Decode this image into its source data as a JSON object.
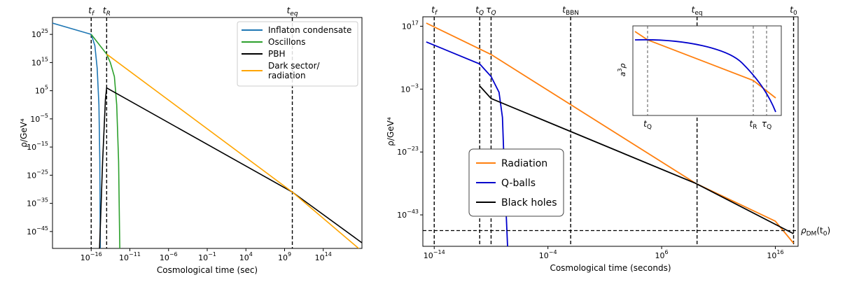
{
  "chart_data": [
    {
      "type": "line",
      "xlabel": "Cosmological time (sec)",
      "ylabel": "ρ/GeV⁴",
      "xscale": "log",
      "yscale": "log",
      "xlim": [
        "1e-21",
        "1e19"
      ],
      "ylim": [
        "1e-51",
        "1e31"
      ],
      "x_ticks": [
        {
          "value": "1e-16",
          "base": "10",
          "exp": "−16"
        },
        {
          "value": "1e-11",
          "base": "10",
          "exp": "−11"
        },
        {
          "value": "1e-6",
          "base": "10",
          "exp": "−6"
        },
        {
          "value": "1e-1",
          "base": "10",
          "exp": "−1"
        },
        {
          "value": "1e4",
          "base": "10",
          "exp": "4"
        },
        {
          "value": "1e9",
          "base": "10",
          "exp": "9"
        },
        {
          "value": "1e14",
          "base": "10",
          "exp": "14"
        }
      ],
      "y_ticks": [
        {
          "value": "1e25",
          "base": "10",
          "exp": "25"
        },
        {
          "value": "1e15",
          "base": "10",
          "exp": "15"
        },
        {
          "value": "1e5",
          "base": "10",
          "exp": "5"
        },
        {
          "value": "1e-5",
          "base": "10",
          "exp": "−5"
        },
        {
          "value": "1e-15",
          "base": "10",
          "exp": "−15"
        },
        {
          "value": "1e-25",
          "base": "10",
          "exp": "−25"
        },
        {
          "value": "1e-35",
          "base": "10",
          "exp": "−35"
        },
        {
          "value": "1e-45",
          "base": "10",
          "exp": "−45"
        }
      ],
      "vlines": [
        {
          "x": "1e-16",
          "label": "t",
          "sub": "f"
        },
        {
          "x": "1e-14",
          "label": "t",
          "sub": "R"
        },
        {
          "x": "1e10",
          "label": "t",
          "sub": "eq"
        }
      ],
      "legend": "top-right",
      "series": [
        {
          "name": "Inflaton condensate",
          "color": "#1f77b4",
          "points": [
            [
              "1e-21",
              "1e29"
            ],
            [
              "1e-16",
              "1e25"
            ],
            [
              "3e-16",
              "1e21"
            ],
            [
              "6e-16",
              "1e13"
            ],
            [
              "1e-15",
              "1e0"
            ],
            [
              "1.3e-15",
              "1e-20"
            ],
            [
              "1.5e-15",
              "1e-51"
            ]
          ]
        },
        {
          "name": "Oscillons",
          "color": "#2ca02c",
          "points": [
            [
              "1e-16",
              "1e25"
            ],
            [
              "1e-14",
              "1e18"
            ],
            [
              "3e-14",
              "1e15"
            ],
            [
              "1e-13",
              "1e10"
            ],
            [
              "2e-13",
              "1e0"
            ],
            [
              "3.5e-13",
              "1e-20"
            ],
            [
              "5e-13",
              "1e-51"
            ]
          ]
        },
        {
          "name": "PBH",
          "color": "#000000",
          "points": [
            [
              "1.2e-15",
              "1e-51"
            ],
            [
              "3e-15",
              "1e-20"
            ],
            [
              "7e-15",
              "1e2"
            ],
            [
              "1e-14",
              "1e6"
            ],
            [
              "1e10",
              "1e-31"
            ],
            [
              "1e19",
              "1e-49"
            ]
          ]
        },
        {
          "name": "Dark sector/\nradiation",
          "color": "#ffa500",
          "points": [
            [
              "1e-14",
              "1e18"
            ],
            [
              "1e10",
              "1e-31"
            ],
            [
              "1e19",
              "1e-52"
            ]
          ]
        }
      ]
    },
    {
      "type": "line",
      "xlabel": "Cosmological time (seconds)",
      "ylabel": "ρ/GeV⁴",
      "xscale": "log",
      "yscale": "log",
      "xlim": [
        "1e-15",
        "1e18"
      ],
      "ylim": [
        "1e-53",
        "1e20"
      ],
      "x_ticks": [
        {
          "value": "1e-14",
          "base": "10",
          "exp": "−14"
        },
        {
          "value": "1e-4",
          "base": "10",
          "exp": "−4"
        },
        {
          "value": "1e6",
          "base": "10",
          "exp": "6"
        },
        {
          "value": "1e16",
          "base": "10",
          "exp": "16"
        }
      ],
      "y_ticks": [
        {
          "value": "1e17",
          "base": "10",
          "exp": "17"
        },
        {
          "value": "1e-3",
          "base": "10",
          "exp": "−3"
        },
        {
          "value": "1e-23",
          "base": "10",
          "exp": "−23"
        },
        {
          "value": "1e-43",
          "base": "10",
          "exp": "−43"
        }
      ],
      "vlines": [
        {
          "x": "1e-14",
          "label": "t",
          "sub": "f",
          "plain": false
        },
        {
          "x": "1e-10",
          "label": "t",
          "sub": "Q",
          "plain": false
        },
        {
          "x": "1e-9",
          "label": "τ",
          "sub": "Q",
          "plain": false
        },
        {
          "x": "1e-2",
          "label": "t",
          "sub": "BBN",
          "plain": true
        },
        {
          "x": "1.3e9",
          "label": "t",
          "sub": "eq",
          "plain": true
        },
        {
          "x": "4e17",
          "label": "t",
          "sub": "0",
          "plain": true
        }
      ],
      "hline": {
        "y": "1e-48",
        "label": "ρ",
        "sub": "DM",
        "suffix": "(t",
        "suffix_sub": "0",
        "suffix_end": ")"
      },
      "legend": "lower-left",
      "series": [
        {
          "name": "Radiation",
          "color": "#ff7f0e",
          "points": [
            [
              "2e-15",
              "1e18"
            ],
            [
              "1e-9",
              "1e8"
            ],
            [
              "1e9",
              "1e-33"
            ],
            [
              "1e16",
              "1e-45"
            ],
            [
              "4e17",
              "1e-52"
            ]
          ]
        },
        {
          "name": "Q-balls",
          "color": "#0000cc",
          "points": [
            [
              "2e-15",
              "1e12"
            ],
            [
              "1e-10",
              "1e5"
            ],
            [
              "1e-9",
              "1e1"
            ],
            [
              "5e-9",
              "1e-4"
            ],
            [
              "1e-8",
              "1e-12"
            ],
            [
              "1.5e-8",
              "1e-30"
            ],
            [
              "3e-8",
              "1e-55"
            ]
          ]
        },
        {
          "name": "Black holes",
          "color": "#000000",
          "points": [
            [
              "1e-10",
              "1e-2"
            ],
            [
              "1e-9",
              "1e-6"
            ],
            [
              "1e9",
              "1e-33"
            ],
            [
              "4e17",
              "1e-49"
            ]
          ]
        }
      ],
      "inset": {
        "ylabel": "a³ρ",
        "xlabels": [
          {
            "label": "t",
            "sub": "Q"
          },
          {
            "label": "t",
            "sub": "R"
          },
          {
            "label": "τ",
            "sub": "Q"
          }
        ]
      }
    }
  ]
}
